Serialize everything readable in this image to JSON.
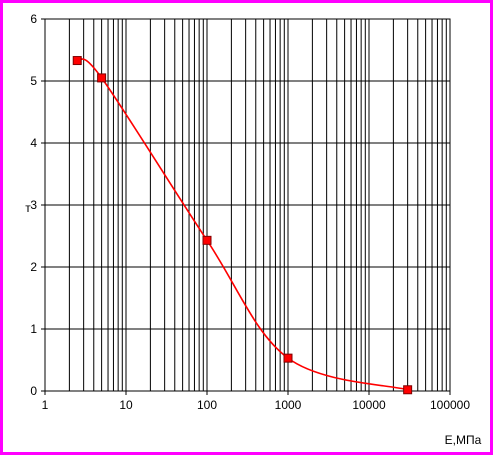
{
  "chart_data": {
    "type": "line",
    "title": "",
    "xlabel": "Е,МПа",
    "ylabel": "т",
    "x_scale": "log",
    "xlim": [
      1,
      100000
    ],
    "ylim": [
      0,
      6
    ],
    "grid": true,
    "x_tick_labels": [
      "1",
      "10",
      "100",
      "1000",
      "10000",
      "100000"
    ],
    "y_tick_labels": [
      "0",
      "1",
      "2",
      "3",
      "4",
      "5",
      "6"
    ],
    "series": [
      {
        "x": [
          2.5,
          5,
          100,
          1000,
          30000
        ],
        "y": [
          5.33,
          5.05,
          2.43,
          0.53,
          0.02
        ]
      }
    ],
    "colors": {
      "frame": "#ff00ff",
      "line": "#ff0000",
      "marker": "#ff0000",
      "marker_outline": "#800000",
      "grid": "#000000",
      "background": "#ffffff"
    }
  }
}
